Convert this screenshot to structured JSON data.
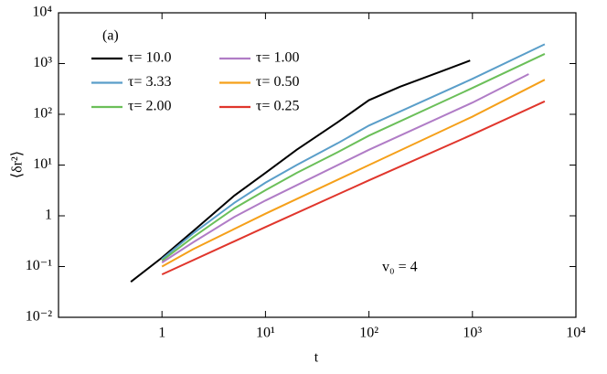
{
  "chart_data": {
    "type": "line",
    "xlabel": "t",
    "ylabel": "⟨δr²⟩",
    "annotations": [
      "(a)",
      "v₀ = 4"
    ],
    "xscale": "log",
    "yscale": "log",
    "xlim": [
      0.1,
      10000
    ],
    "ylim": [
      0.01,
      10000
    ],
    "xticks": [
      1,
      {
        "value": 10,
        "label": "10¹"
      },
      {
        "value": 100,
        "label": "10²"
      },
      {
        "value": 1000,
        "label": "10³"
      },
      {
        "value": 10000,
        "label": "10⁴"
      }
    ],
    "yticks": [
      {
        "value": 0.01,
        "label": "10⁻²"
      },
      {
        "value": 0.1,
        "label": "10⁻¹"
      },
      1,
      {
        "value": 10,
        "label": "10¹"
      },
      {
        "value": 100,
        "label": "10²"
      },
      {
        "value": 1000,
        "label": "10³"
      },
      {
        "value": 10000,
        "label": "10⁴"
      }
    ],
    "legend": "upper left",
    "series": [
      {
        "name": "τ= 10.0",
        "color": "#000000",
        "x": [
          0.5,
          1,
          2,
          5,
          10,
          20,
          50,
          100,
          200,
          500,
          950
        ],
        "values": [
          0.05,
          0.15,
          0.5,
          2.5,
          7,
          20,
          70,
          190,
          350,
          700,
          1150
        ]
      },
      {
        "name": "τ= 3.33",
        "color": "#5a9ec9",
        "x": [
          1,
          2,
          5,
          10,
          20,
          50,
          100,
          1000,
          5000
        ],
        "values": [
          0.14,
          0.45,
          1.8,
          4.5,
          10,
          27,
          60,
          500,
          2400
        ]
      },
      {
        "name": "τ= 2.00",
        "color": "#6bbf59",
        "x": [
          1,
          2,
          5,
          10,
          20,
          50,
          100,
          1000,
          5000
        ],
        "values": [
          0.13,
          0.38,
          1.4,
          3.2,
          7,
          18,
          38,
          330,
          1550
        ]
      },
      {
        "name": "τ= 1.00",
        "color": "#b07cc6",
        "x": [
          1,
          2,
          5,
          10,
          100,
          1000,
          3500
        ],
        "values": [
          0.12,
          0.3,
          0.95,
          2,
          20,
          170,
          620
        ]
      },
      {
        "name": "τ= 0.50",
        "color": "#f5a01a",
        "x": [
          1,
          2,
          5,
          10,
          100,
          1000,
          5000
        ],
        "values": [
          0.1,
          0.22,
          0.55,
          1.1,
          10,
          90,
          480
        ]
      },
      {
        "name": "τ= 0.25",
        "color": "#e0362c",
        "x": [
          1,
          10,
          100,
          1000,
          5000
        ],
        "values": [
          0.07,
          0.6,
          5,
          40,
          180
        ]
      }
    ]
  }
}
